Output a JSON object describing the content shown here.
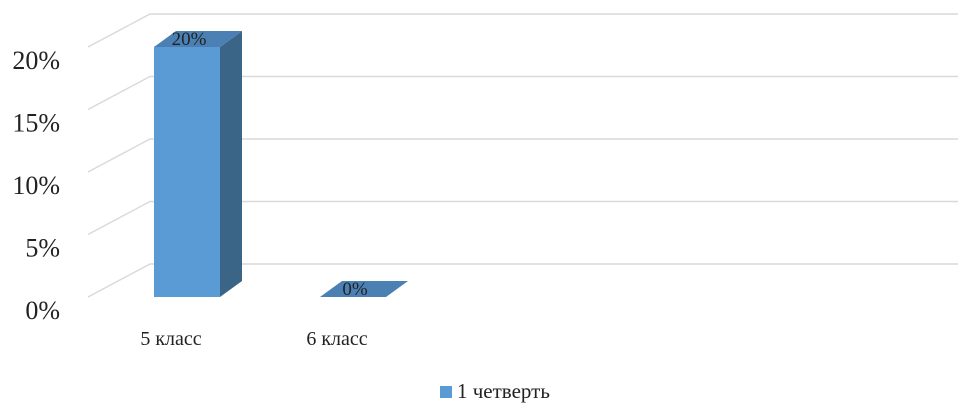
{
  "chart_data": {
    "type": "bar",
    "categories": [
      "5 класс",
      "6 класс"
    ],
    "series": [
      {
        "name": "1 четверть",
        "values": [
          0.2,
          0.0
        ],
        "labels": [
          "20%",
          "0%"
        ],
        "color": "#5b9bd5",
        "side_color": "#3a6587",
        "top_color": "#4a80b4"
      }
    ],
    "y_ticks": [
      "0%",
      "5%",
      "10%",
      "15%",
      "20%"
    ],
    "ylim": [
      0,
      0.2
    ],
    "grid": true,
    "grid_color": "#d9d9d9",
    "legend_position": "bottom-center",
    "three_d": true
  }
}
